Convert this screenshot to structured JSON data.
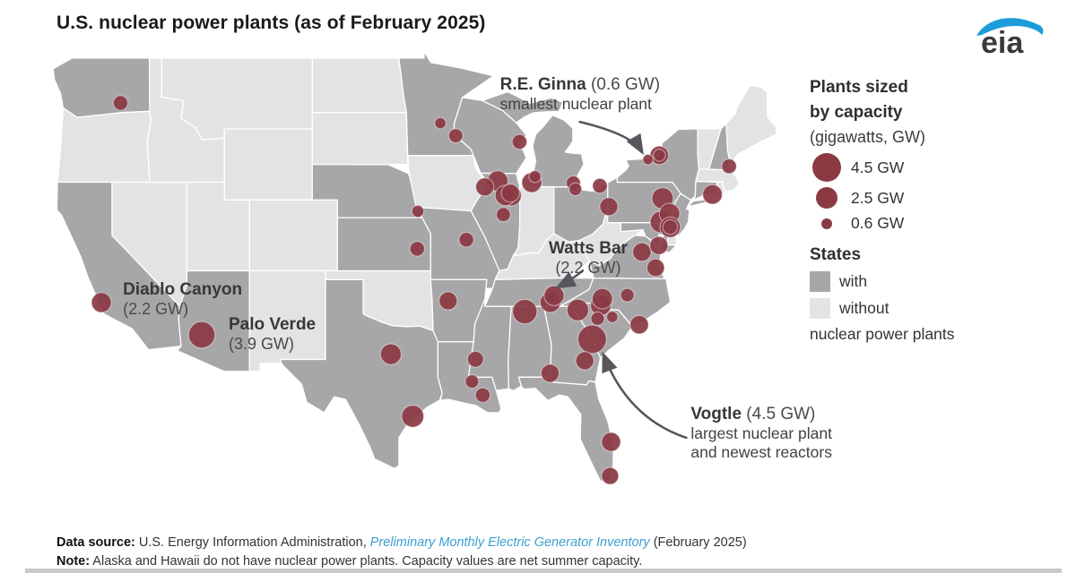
{
  "title": "U.S. nuclear power plants (as of February 2025)",
  "logo": {
    "text": "eia",
    "blue": "#1c9dd9"
  },
  "legend": {
    "size_title_line1": "Plants sized",
    "size_title_line2": "by capacity",
    "size_subtitle": "(gigawatts, GW)",
    "size_items": [
      {
        "gw": 4.5,
        "label": "4.5 GW"
      },
      {
        "gw": 2.5,
        "label": "2.5 GW"
      },
      {
        "gw": 0.6,
        "label": "0.6 GW"
      }
    ],
    "states_title": "States",
    "states_items": [
      {
        "type": "with",
        "label": "with"
      },
      {
        "type": "without",
        "label": "without"
      }
    ],
    "states_suffix": "nuclear power plants"
  },
  "colors": {
    "state_with": "#a7a7aa",
    "state_without": "#e3e3e5",
    "plant": "#8b3a44",
    "arrow": "#56575b",
    "link_blue": "#3b9fd3"
  },
  "annotations": [
    {
      "plant": "R.E. Ginna",
      "bold": "R.E. Ginna",
      "normal": "(0.6 GW)",
      "sub": [
        "smallest nuclear plant"
      ]
    },
    {
      "plant": "Watts Bar",
      "bold": "Watts Bar",
      "normal": "(2.2 GW)",
      "sub": []
    },
    {
      "plant": "Diablo Canyon",
      "bold": "Diablo Canyon",
      "normal": "(2.2 GW)",
      "sub": []
    },
    {
      "plant": "Palo Verde",
      "bold": "Palo Verde",
      "normal": "(3.9 GW)",
      "sub": []
    },
    {
      "plant": "Vogtle",
      "bold": "Vogtle",
      "normal": "(4.5 GW)",
      "sub": [
        "largest nuclear plant",
        "and newest reactors"
      ]
    }
  ],
  "footer": {
    "source_label": "Data source:",
    "source_text": "U.S. Energy Information Administration,",
    "source_link": "Preliminary Monthly Electric Generator Inventory",
    "source_suffix": "(February 2025)",
    "note_label": "Note:",
    "note_text": "Alaska and Hawaii do not have nuclear power plants. Capacity values are net summer capacity."
  },
  "chart_data": {
    "type": "map",
    "title": "U.S. nuclear power plants (as of February 2025)",
    "units": "gigawatts (GW), net summer capacity",
    "size_scale_gw": [
      4.5,
      2.5,
      0.6
    ],
    "states_with_plants": [
      "WA",
      "CA",
      "AZ",
      "TX",
      "NE",
      "KS",
      "MN",
      "MO",
      "AR",
      "LA",
      "MS",
      "WI",
      "IL",
      "MI",
      "OH",
      "TN",
      "AL",
      "GA",
      "FL",
      "SC",
      "NC",
      "VA",
      "MD",
      "PA",
      "NJ",
      "NY",
      "CT",
      "NH"
    ],
    "states_without_plants": [
      "OR",
      "NV",
      "ID",
      "MT",
      "WY",
      "UT",
      "CO",
      "NM",
      "ND",
      "SD",
      "OK",
      "IA",
      "IN",
      "KY",
      "WV",
      "DE",
      "VT",
      "MA",
      "RI",
      "ME"
    ],
    "plants": [
      {
        "name": "Columbia",
        "gw": 1.2,
        "lon": -119.33,
        "lat": 46.47
      },
      {
        "name": "Diablo Canyon",
        "gw": 2.2,
        "lon": -120.85,
        "lat": 35.21
      },
      {
        "name": "Palo Verde",
        "gw": 3.9,
        "lon": -112.86,
        "lat": 33.39
      },
      {
        "name": "Monticello",
        "gw": 0.7,
        "lon": -93.85,
        "lat": 45.33
      },
      {
        "name": "Prairie Island",
        "gw": 1.1,
        "lon": -92.63,
        "lat": 44.62
      },
      {
        "name": "Cooper",
        "gw": 0.8,
        "lon": -95.64,
        "lat": 40.36
      },
      {
        "name": "Wolf Creek",
        "gw": 1.2,
        "lon": -95.69,
        "lat": 38.24
      },
      {
        "name": "Callaway",
        "gw": 1.2,
        "lon": -91.78,
        "lat": 38.76
      },
      {
        "name": "Arkansas Nuclear One",
        "gw": 1.8,
        "lon": -93.23,
        "lat": 35.31
      },
      {
        "name": "Comanche Peak",
        "gw": 2.4,
        "lon": -97.79,
        "lat": 32.3
      },
      {
        "name": "South Texas Project",
        "gw": 2.7,
        "lon": -96.05,
        "lat": 28.8
      },
      {
        "name": "River Bend",
        "gw": 1.0,
        "lon": -91.33,
        "lat": 30.76
      },
      {
        "name": "Waterford",
        "gw": 1.2,
        "lon": -90.47,
        "lat": 29.99
      },
      {
        "name": "Grand Gulf",
        "gw": 1.4,
        "lon": -91.05,
        "lat": 32.01
      },
      {
        "name": "Point Beach",
        "gw": 1.2,
        "lon": -87.54,
        "lat": 44.28
      },
      {
        "name": "Cook",
        "gw": 2.2,
        "lon": -86.57,
        "lat": 41.98
      },
      {
        "name": "Palisades",
        "gw": 0.8,
        "lon": -86.31,
        "lat": 42.32
      },
      {
        "name": "Fermi",
        "gw": 1.1,
        "lon": -83.26,
        "lat": 41.96
      },
      {
        "name": "Davis-Besse",
        "gw": 0.9,
        "lon": -83.09,
        "lat": 41.6
      },
      {
        "name": "Perry",
        "gw": 1.2,
        "lon": -81.14,
        "lat": 41.8
      },
      {
        "name": "Quad Cities",
        "gw": 1.8,
        "lon": -90.31,
        "lat": 41.73
      },
      {
        "name": "Byron",
        "gw": 2.3,
        "lon": -89.28,
        "lat": 42.07
      },
      {
        "name": "Dresden",
        "gw": 1.8,
        "lon": -88.27,
        "lat": 41.39
      },
      {
        "name": "Braidwood",
        "gw": 2.4,
        "lon": -88.23,
        "lat": 41.24
      },
      {
        "name": "LaSalle",
        "gw": 2.3,
        "lon": -88.67,
        "lat": 41.25
      },
      {
        "name": "Clinton",
        "gw": 1.1,
        "lon": -88.83,
        "lat": 40.17
      },
      {
        "name": "R.E. Ginna",
        "gw": 0.6,
        "lon": -77.31,
        "lat": 43.28
      },
      {
        "name": "Nine Mile Point",
        "gw": 1.9,
        "lon": -76.41,
        "lat": 43.52
      },
      {
        "name": "FitzPatrick",
        "gw": 0.8,
        "lon": -76.4,
        "lat": 43.52
      },
      {
        "name": "Susquehanna",
        "gw": 2.5,
        "lon": -76.15,
        "lat": 41.09
      },
      {
        "name": "Limerick",
        "gw": 2.3,
        "lon": -75.59,
        "lat": 40.23
      },
      {
        "name": "Peach Bottom",
        "gw": 2.6,
        "lon": -76.27,
        "lat": 39.76
      },
      {
        "name": "Beaver Valley",
        "gw": 1.8,
        "lon": -80.43,
        "lat": 40.62
      },
      {
        "name": "Salem",
        "gw": 2.3,
        "lon": -75.54,
        "lat": 39.46
      },
      {
        "name": "Hope Creek",
        "gw": 1.2,
        "lon": -75.54,
        "lat": 39.47
      },
      {
        "name": "Calvert Cliffs",
        "gw": 1.8,
        "lon": -76.44,
        "lat": 38.43
      },
      {
        "name": "North Anna",
        "gw": 1.9,
        "lon": -77.79,
        "lat": 38.06
      },
      {
        "name": "Surry",
        "gw": 1.7,
        "lon": -76.7,
        "lat": 37.17
      },
      {
        "name": "Millstone",
        "gw": 2.1,
        "lon": -72.17,
        "lat": 41.31
      },
      {
        "name": "Seabrook",
        "gw": 1.2,
        "lon": -70.85,
        "lat": 42.9
      },
      {
        "name": "Watts Bar",
        "gw": 2.2,
        "lon": -84.79,
        "lat": 35.6
      },
      {
        "name": "Sequoyah",
        "gw": 2.3,
        "lon": -85.09,
        "lat": 35.23
      },
      {
        "name": "Browns Ferry",
        "gw": 3.3,
        "lon": -87.12,
        "lat": 34.7
      },
      {
        "name": "Farley",
        "gw": 1.8,
        "lon": -85.11,
        "lat": 31.22
      },
      {
        "name": "Hatch",
        "gw": 1.8,
        "lon": -82.34,
        "lat": 31.93
      },
      {
        "name": "Vogtle",
        "gw": 4.5,
        "lon": -81.76,
        "lat": 33.14
      },
      {
        "name": "Summer",
        "gw": 1.0,
        "lon": -81.32,
        "lat": 34.3
      },
      {
        "name": "Catawba",
        "gw": 2.3,
        "lon": -81.07,
        "lat": 35.05
      },
      {
        "name": "Oconee",
        "gw": 2.6,
        "lon": -82.9,
        "lat": 34.79
      },
      {
        "name": "Robinson",
        "gw": 0.7,
        "lon": -80.16,
        "lat": 34.4
      },
      {
        "name": "McGuire",
        "gw": 2.3,
        "lon": -80.95,
        "lat": 35.43
      },
      {
        "name": "Harris",
        "gw": 1.0,
        "lon": -78.96,
        "lat": 35.63
      },
      {
        "name": "Brunswick",
        "gw": 1.9,
        "lon": -78.01,
        "lat": 33.96
      },
      {
        "name": "St. Lucie",
        "gw": 2.0,
        "lon": -80.25,
        "lat": 27.35
      },
      {
        "name": "Turkey Point",
        "gw": 1.6,
        "lon": -80.33,
        "lat": 25.43
      }
    ]
  }
}
